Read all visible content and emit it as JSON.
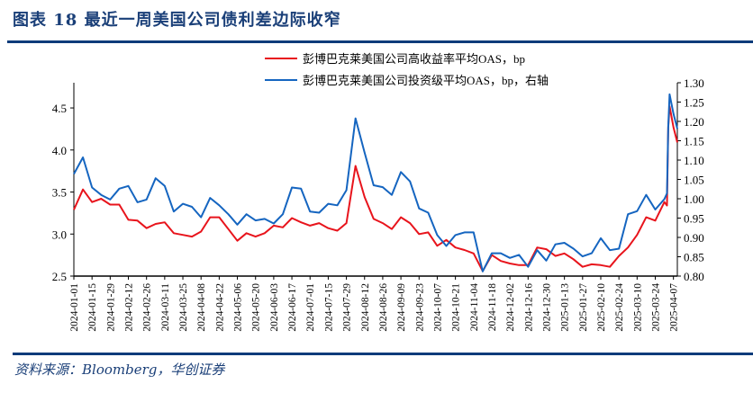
{
  "header": {
    "title": "图表 18   最近一周美国公司债利差边际收窄"
  },
  "footer": {
    "source": "资料来源：Bloomberg，华创证券"
  },
  "chart_data": {
    "type": "line",
    "title": "",
    "xlabel": "",
    "ylabel": "",
    "xlim": [
      "2024-01-01",
      "2025-04-10"
    ],
    "ylim_left": [
      2.5,
      4.8
    ],
    "yticks_left": [
      "2.5",
      "3.0",
      "3.5",
      "4.0",
      "4.5"
    ],
    "ylim_right": [
      0.8,
      1.3
    ],
    "yticks_right": [
      "0.80",
      "0.85",
      "0.90",
      "0.95",
      "1.00",
      "1.05",
      "1.10",
      "1.15",
      "1.20",
      "1.25",
      "1.30"
    ],
    "xticks": [
      "2024-01-01",
      "2024-01-15",
      "2024-01-29",
      "2024-02-12",
      "2024-02-26",
      "2024-03-11",
      "2024-03-25",
      "2024-04-08",
      "2024-04-22",
      "2024-05-06",
      "2024-05-20",
      "2024-06-03",
      "2024-06-17",
      "2024-07-01",
      "2024-07-15",
      "2024-07-29",
      "2024-08-12",
      "2024-08-26",
      "2024-09-09",
      "2024-09-23",
      "2024-10-07",
      "2024-10-21",
      "2024-11-04",
      "2024-11-18",
      "2024-12-02",
      "2024-12-16",
      "2024-12-30",
      "2025-01-13",
      "2025-01-27",
      "2025-02-10",
      "2025-02-24",
      "2025-03-10",
      "2025-03-24",
      "2025-04-07"
    ],
    "grid": false,
    "legend_position": "top-right",
    "x": [
      "2024-01-01",
      "2024-01-08",
      "2024-01-15",
      "2024-01-22",
      "2024-01-29",
      "2024-02-05",
      "2024-02-12",
      "2024-02-19",
      "2024-02-26",
      "2024-03-04",
      "2024-03-11",
      "2024-03-18",
      "2024-03-25",
      "2024-04-01",
      "2024-04-08",
      "2024-04-15",
      "2024-04-22",
      "2024-04-29",
      "2024-05-06",
      "2024-05-13",
      "2024-05-20",
      "2024-05-27",
      "2024-06-03",
      "2024-06-10",
      "2024-06-17",
      "2024-06-24",
      "2024-07-01",
      "2024-07-08",
      "2024-07-15",
      "2024-07-22",
      "2024-07-29",
      "2024-08-05",
      "2024-08-12",
      "2024-08-19",
      "2024-08-26",
      "2024-09-02",
      "2024-09-09",
      "2024-09-16",
      "2024-09-23",
      "2024-09-30",
      "2024-10-07",
      "2024-10-14",
      "2024-10-21",
      "2024-10-28",
      "2024-11-04",
      "2024-11-11",
      "2024-11-18",
      "2024-11-25",
      "2024-12-02",
      "2024-12-09",
      "2024-12-16",
      "2024-12-23",
      "2024-12-30",
      "2025-01-06",
      "2025-01-13",
      "2025-01-20",
      "2025-01-27",
      "2025-02-03",
      "2025-02-10",
      "2025-02-17",
      "2025-02-24",
      "2025-03-03",
      "2025-03-10",
      "2025-03-17",
      "2025-03-24",
      "2025-03-31",
      "2025-04-02",
      "2025-04-03",
      "2025-04-04",
      "2025-04-07",
      "2025-04-10"
    ],
    "series": [
      {
        "name": "彭博巴克莱美国公司高收益率平均OAS，bp",
        "axis": "left",
        "color": "#e8141c",
        "values": [
          3.29,
          3.53,
          3.38,
          3.42,
          3.35,
          3.35,
          3.17,
          3.16,
          3.07,
          3.12,
          3.14,
          3.01,
          2.99,
          2.97,
          3.03,
          3.2,
          3.2,
          3.06,
          2.92,
          3.01,
          2.97,
          3.01,
          3.1,
          3.08,
          3.19,
          3.14,
          3.1,
          3.13,
          3.07,
          3.04,
          3.13,
          3.81,
          3.44,
          3.18,
          3.13,
          3.06,
          3.2,
          3.13,
          3.0,
          3.02,
          2.86,
          2.93,
          2.84,
          2.81,
          2.77,
          2.56,
          2.75,
          2.68,
          2.65,
          2.63,
          2.63,
          2.84,
          2.82,
          2.74,
          2.77,
          2.7,
          2.61,
          2.64,
          2.63,
          2.61,
          2.74,
          2.84,
          2.99,
          3.2,
          3.16,
          3.38,
          3.34,
          4.27,
          4.52,
          4.27,
          4.09
        ]
      },
      {
        "name": "彭博巴克莱美国公司投资级平均OAS，bp，右轴",
        "axis": "right",
        "color": "#1565c0",
        "values": [
          1.064,
          1.107,
          1.029,
          1.01,
          0.998,
          1.026,
          1.033,
          0.991,
          0.998,
          1.053,
          1.033,
          0.967,
          0.987,
          0.979,
          0.952,
          1.002,
          0.983,
          0.96,
          0.933,
          0.96,
          0.944,
          0.948,
          0.936,
          0.96,
          1.029,
          1.026,
          0.967,
          0.964,
          0.987,
          0.983,
          1.022,
          1.208,
          1.119,
          1.035,
          1.03,
          1.01,
          1.069,
          1.045,
          0.975,
          0.964,
          0.906,
          0.878,
          0.906,
          0.913,
          0.913,
          0.812,
          0.859,
          0.859,
          0.847,
          0.855,
          0.824,
          0.867,
          0.84,
          0.882,
          0.886,
          0.871,
          0.851,
          0.859,
          0.898,
          0.867,
          0.871,
          0.96,
          0.968,
          1.01,
          0.972,
          0.999,
          1.014,
          1.185,
          1.27,
          1.22,
          1.181
        ]
      }
    ]
  }
}
